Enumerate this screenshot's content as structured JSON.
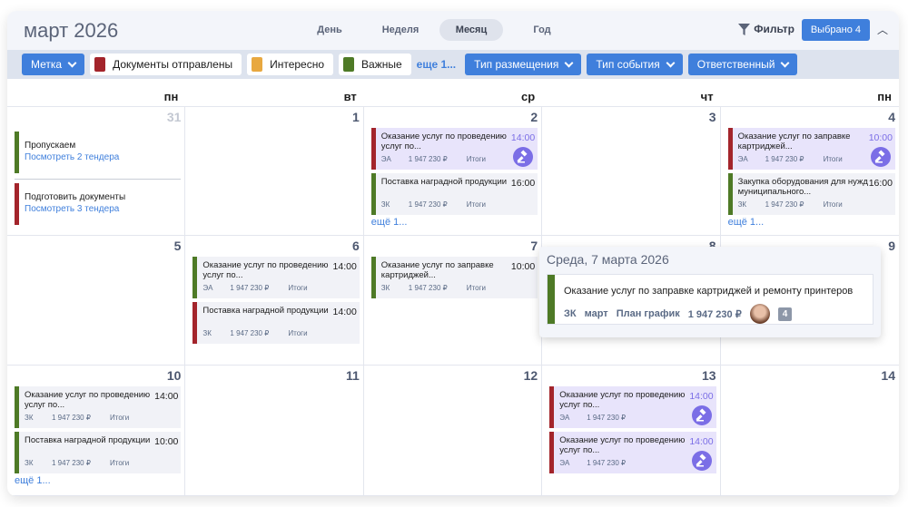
{
  "header": {
    "title": "март 2026",
    "views": [
      {
        "label": "День",
        "active": false
      },
      {
        "label": "Неделя",
        "active": false
      },
      {
        "label": "Месяц",
        "active": true
      },
      {
        "label": "Год",
        "active": false
      }
    ],
    "filter_label": "Фильтр",
    "selected_label": "Выбрано 4"
  },
  "filters": {
    "label_dropdown": "Метка",
    "tags": [
      {
        "label": "Документы отправлены",
        "color": "#a3242b"
      },
      {
        "label": "Интересно",
        "color": "#e8a840"
      },
      {
        "label": "Важные",
        "color": "#4e7a26"
      }
    ],
    "more": "еще 1...",
    "dropdowns": [
      "Тип размещения",
      "Тип события",
      "Ответственный"
    ]
  },
  "colors": {
    "accent": "#3f7fdc",
    "red": "#a3242b",
    "green": "#4e7a26",
    "auction": "#7b6ee6"
  },
  "weekdays": [
    "пн",
    "вт",
    "ср",
    "чт",
    "пн"
  ],
  "days": [
    {
      "num": "31",
      "muted": true,
      "tasks": [
        {
          "title": "Пропускаем",
          "link": "Посмотреть 2 тендера",
          "color": "#4e7a26"
        },
        {
          "title": "Подготовить документы",
          "link": "Посмотреть 3 тендера",
          "color": "#a3242b"
        }
      ]
    },
    {
      "num": "1"
    },
    {
      "num": "2",
      "events": [
        {
          "title": "Оказание услуг по проведению услуг по...",
          "time": "14:00",
          "code": "ЭА",
          "price": "1 947 230 ₽",
          "result": "Итоги",
          "color": "#a3242b",
          "auction": true
        },
        {
          "title": "Поставка наградной продукции",
          "time": "16:00",
          "code": "ЗК",
          "price": "1 947 230 ₽",
          "result": "Итоги",
          "color": "#4e7a26"
        }
      ],
      "more": "ещё 1..."
    },
    {
      "num": "3"
    },
    {
      "num": "4",
      "events": [
        {
          "title": "Оказание услуг по заправке картриджей...",
          "time": "10:00",
          "code": "ЭА",
          "price": "1 947 230 ₽",
          "result": "Итоги",
          "color": "#a3242b",
          "auction": true
        },
        {
          "title": "Закупка оборудования для нужд муниципального...",
          "time": "16:00",
          "code": "ЗК",
          "price": "1 947 230 ₽",
          "result": "Итоги",
          "color": "#4e7a26"
        }
      ],
      "more": "ещё 1..."
    },
    {
      "num": "5"
    },
    {
      "num": "6",
      "events": [
        {
          "title": "Оказание услуг по проведению услуг по...",
          "time": "14:00",
          "code": "ЭА",
          "price": "1 947 230 ₽",
          "result": "Итоги",
          "color": "#4e7a26"
        },
        {
          "title": "Поставка наградной продукции",
          "time": "14:00",
          "code": "ЗК",
          "price": "1 947 230 ₽",
          "result": "Итоги",
          "color": "#a3242b"
        }
      ]
    },
    {
      "num": "7",
      "events": [
        {
          "title": "Оказание услуг по заправке картриджей...",
          "time": "10:00",
          "code": "ЗК",
          "price": "1 947 230 ₽",
          "result": "Итоги",
          "color": "#4e7a26"
        }
      ]
    },
    {
      "num": "8"
    },
    {
      "num": "9"
    },
    {
      "num": "10",
      "events": [
        {
          "title": "Оказание услуг по проведению услуг по...",
          "time": "14:00",
          "code": "ЗК",
          "price": "1 947 230 ₽",
          "result": "Итоги",
          "color": "#4e7a26"
        },
        {
          "title": "Поставка наградной продукции",
          "time": "10:00",
          "code": "ЗК",
          "price": "1 947 230 ₽",
          "result": "Итоги",
          "color": "#4e7a26"
        }
      ],
      "more": "ещё 1..."
    },
    {
      "num": "11"
    },
    {
      "num": "12"
    },
    {
      "num": "13",
      "events": [
        {
          "title": "Оказание услуг по проведению услуг по...",
          "time": "14:00",
          "code": "ЭА",
          "price": "1 947 230 ₽",
          "result": "",
          "color": "#a3242b",
          "auction": true
        },
        {
          "title": "Оказание услуг по проведению услуг по...",
          "time": "14:00",
          "code": "ЭА",
          "price": "1 947 230 ₽",
          "result": "",
          "color": "#a3242b",
          "auction": true
        }
      ]
    },
    {
      "num": "14"
    }
  ],
  "popup": {
    "title": "Среда, 7 марта 2026",
    "event": {
      "title": "Оказание услуг по заправке картриджей и ремонту принтеров",
      "code": "ЗК",
      "month": "март",
      "plan": "План график",
      "price": "1 947 230 ₽",
      "count": "4",
      "color": "#4e7a26"
    }
  }
}
